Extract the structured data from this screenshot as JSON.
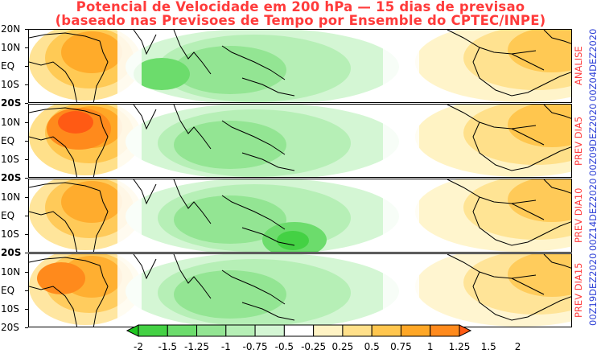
{
  "title": {
    "line1": "Potencial de Velocidade em 200 hPa — 15 dias de previsao",
    "line2": "(baseado nas Previsoes de Tempo por Ensemble do CPTEC/INPE)"
  },
  "lat_labels": [
    "20N",
    "10N",
    "EQ",
    "10S",
    "20S"
  ],
  "panels": [
    {
      "label": "ANALISE",
      "date": "00Z04DEZ2020"
    },
    {
      "label": "PREV DIA5",
      "date": "00Z09DEZ2020"
    },
    {
      "label": "PREV DIA10",
      "date": "00Z14DEZ2020"
    },
    {
      "label": "PREV DIA15",
      "date": "00Z19DEZ2020"
    }
  ],
  "colorbar": {
    "labels": [
      "-2",
      "-1.5",
      "-1.25",
      "-1",
      "-0.75",
      "-0.5",
      "-0.25",
      "0.25",
      "0.5",
      "0.75",
      "1",
      "1.25",
      "1.5",
      "2"
    ],
    "colors": [
      "#1fc61f",
      "#44d144",
      "#6cdc6c",
      "#93e593",
      "#b6efb6",
      "#d4f6d4",
      "#ffffff",
      "#fff3c4",
      "#ffe08a",
      "#ffc64e",
      "#ffa726",
      "#ff8a1c",
      "#ff5a14"
    ]
  },
  "colors": {
    "title": "#ff3b3b",
    "side_label": "#ff3b3b",
    "side_date": "#2c3fd6"
  }
}
